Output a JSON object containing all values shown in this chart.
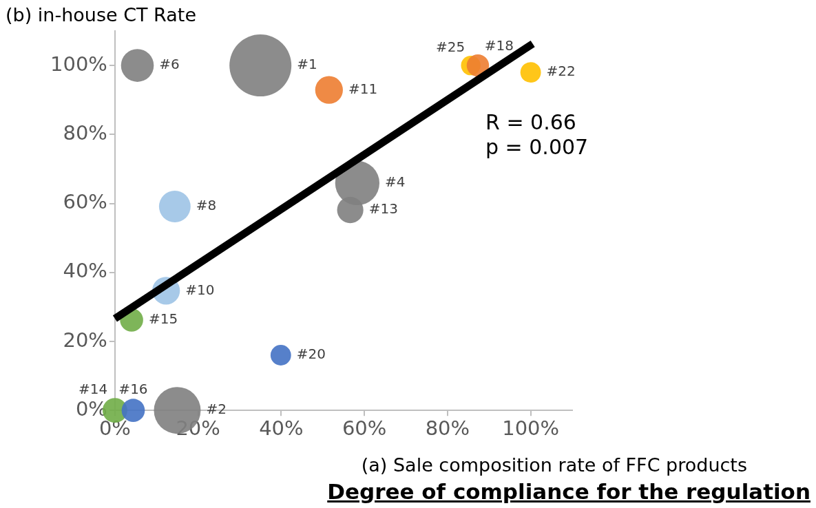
{
  "chart_data": {
    "type": "bubble",
    "title": "Degree of compliance for the regulation",
    "xlabel": "(a) Sale composition rate of FFC products",
    "ylabel": "(b) in-house CT Rate",
    "annotations": [
      "R = 0.66",
      "p = 0.007",
      {
        "text": "#6",
        "x": 5.4,
        "y": 100
      },
      {
        "text": "#1",
        "x": 35,
        "y": 100
      },
      {
        "text": "#4",
        "x": 58.3,
        "y": 65.9
      },
      {
        "text": "#13",
        "x": 56.6,
        "y": 58.1
      },
      {
        "text": "#2",
        "x": 15,
        "y": 0
      },
      {
        "text": "#11",
        "x": 51.5,
        "y": 92.9
      },
      {
        "text": "#18",
        "x": 87.3,
        "y": 100
      },
      {
        "text": "#25",
        "x": 85.6,
        "y": 100
      },
      {
        "text": "#22",
        "x": 100,
        "y": 98
      },
      {
        "text": "#8",
        "x": 14.4,
        "y": 59.1
      },
      {
        "text": "#10",
        "x": 12.3,
        "y": 34.7
      },
      {
        "text": "#20",
        "x": 39.9,
        "y": 16
      },
      {
        "text": "#16",
        "x": 4.4,
        "y": 0
      },
      {
        "text": "#15",
        "x": 4,
        "y": 26.2
      },
      {
        "text": "#14",
        "x": 0,
        "y": 0
      }
    ],
    "xlim": [
      0,
      110
    ],
    "ylim": [
      0,
      110
    ],
    "xticks": [
      {
        "value": 0,
        "label": "0%"
      },
      {
        "value": 20,
        "label": "20%"
      },
      {
        "value": 40,
        "label": "40%"
      },
      {
        "value": 60,
        "label": "60%"
      },
      {
        "value": 80,
        "label": "80%"
      },
      {
        "value": 100,
        "label": "100%"
      }
    ],
    "yticks": [
      {
        "value": 0,
        "label": "0%"
      },
      {
        "value": 20,
        "label": "20%"
      },
      {
        "value": 40,
        "label": "40%"
      },
      {
        "value": 60,
        "label": "60%"
      },
      {
        "value": 80,
        "label": "80%"
      },
      {
        "value": 100,
        "label": "100%"
      }
    ],
    "grid": false,
    "legend": false,
    "series": [
      {
        "color": "#7f7f7f",
        "x": [
          5.4,
          35,
          58.3,
          56.6,
          15
        ],
        "values": [
          100,
          100,
          65.9,
          58.1,
          0
        ],
        "sizes": [
          0.28,
          1,
          0.51,
          0.18,
          0.57
        ]
      },
      {
        "color": "#ed7d31",
        "x": [
          51.5,
          87.3
        ],
        "values": [
          92.9,
          100
        ],
        "sizes": [
          0.2,
          0.13
        ]
      },
      {
        "color": "#ffc000",
        "x": [
          85.6,
          100
        ],
        "values": [
          100,
          98
        ],
        "sizes": [
          0.1,
          0.11
        ]
      },
      {
        "color": "#9dc3e6",
        "x": [
          14.4,
          12.3
        ],
        "values": [
          59.1,
          34.7
        ],
        "sizes": [
          0.26,
          0.2
        ]
      },
      {
        "color": "#4472c4",
        "x": [
          39.9,
          4.4
        ],
        "values": [
          16,
          0
        ],
        "sizes": [
          0.11,
          0.14
        ]
      },
      {
        "color": "#70ad47",
        "x": [
          4,
          0
        ],
        "values": [
          26.2,
          0
        ],
        "sizes": [
          0.14,
          0.16
        ]
      },
      {
        "type": "line",
        "color": "#000000",
        "x": [
          0,
          100.5
        ],
        "values": [
          26.6,
          106.3
        ],
        "marker": "none",
        "line_style": "solid"
      }
    ]
  }
}
